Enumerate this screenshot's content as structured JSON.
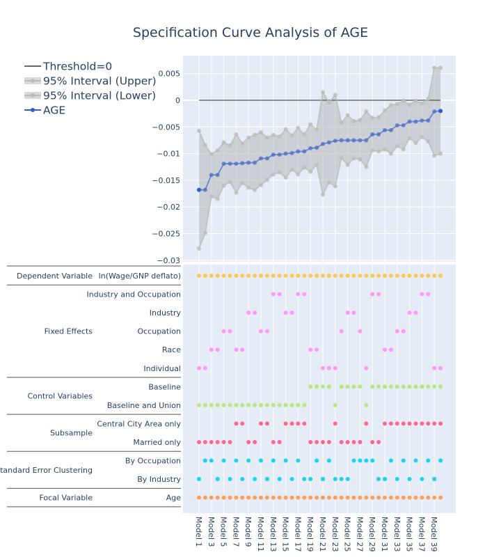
{
  "chart_data": {
    "type": "line",
    "title": "Specification Curve Analysis of AGE",
    "legend": {
      "placement": "top-left",
      "entries": [
        "Threshold=0",
        "95% Interval (Upper)",
        "95% Interval (Lower)",
        "AGE"
      ]
    },
    "grid": true,
    "colors": {
      "estimate": "#4a6fc9",
      "interval": "#bdbdbd",
      "threshold": "#666666",
      "plot_bg": "#e5ecf6"
    },
    "threshold": 0,
    "ylim": [
      -0.03,
      0.0075
    ],
    "yticks": [
      0.005,
      0,
      -0.005,
      -0.01,
      -0.015,
      -0.02,
      -0.025,
      -0.03
    ],
    "ytick_labels": [
      "0.005",
      "0",
      "−0.005",
      "−0.01",
      "−0.015",
      "−0.02",
      "−0.025",
      "−0.03"
    ],
    "models": [
      "Model 1",
      "Model 2",
      "Model 3",
      "Model 4",
      "Model 5",
      "Model 6",
      "Model 7",
      "Model 8",
      "Model 9",
      "Model 10",
      "Model 11",
      "Model 12",
      "Model 13",
      "Model 14",
      "Model 15",
      "Model 16",
      "Model 17",
      "Model 18",
      "Model 19",
      "Model 20",
      "Model 21",
      "Model 22",
      "Model 23",
      "Model 24",
      "Model 25",
      "Model 26",
      "Model 27",
      "Model 28",
      "Model 29",
      "Model 30",
      "Model 31",
      "Model 32",
      "Model 33",
      "Model 34",
      "Model 35",
      "Model 36",
      "Model 37",
      "Model 38",
      "Model 39",
      "Model 40"
    ],
    "xtick_labels": [
      "Model 1",
      "Model 3",
      "Model 5",
      "Model 7",
      "Model 9",
      "Model 11",
      "Model 13",
      "Model 15",
      "Model 17",
      "Model 19",
      "Model 21",
      "Model 23",
      "Model 25",
      "Model 27",
      "Model 29",
      "Model 31",
      "Model 33",
      "Model 35",
      "Model 37",
      "Model 39"
    ],
    "series": [
      {
        "name": "AGE",
        "values": [
          -0.0168,
          -0.0168,
          -0.014,
          -0.014,
          -0.0119,
          -0.0119,
          -0.0119,
          -0.0118,
          -0.0117,
          -0.0117,
          -0.0109,
          -0.0109,
          -0.0102,
          -0.0102,
          -0.01,
          -0.0099,
          -0.0096,
          -0.0096,
          -0.009,
          -0.0089,
          -0.0082,
          -0.0079,
          -0.0076,
          -0.0075,
          -0.0075,
          -0.0075,
          -0.0075,
          -0.0075,
          -0.0064,
          -0.0064,
          -0.0056,
          -0.0056,
          -0.0047,
          -0.0047,
          -0.004,
          -0.004,
          -0.0038,
          -0.0038,
          -0.0021,
          -0.002
        ]
      },
      {
        "name": "95% Interval (Upper)",
        "values": [
          -0.0057,
          -0.0084,
          -0.0101,
          -0.0094,
          -0.0079,
          -0.0085,
          -0.0064,
          -0.0081,
          -0.007,
          -0.0065,
          -0.006,
          -0.007,
          -0.0065,
          -0.0068,
          -0.0054,
          -0.0066,
          -0.0052,
          -0.0064,
          -0.0045,
          -0.0055,
          0.0015,
          -0.0004,
          0.001,
          -0.0042,
          -0.0028,
          -0.0039,
          -0.0037,
          -0.0021,
          -0.0033,
          -0.0032,
          -0.0019,
          -0.0009,
          -0.0007,
          -0.0001,
          -0.0008,
          -0.0001,
          -0.0006,
          0.0003,
          0.0061,
          0.0061
        ]
      },
      {
        "name": "95% Interval (Lower)",
        "values": [
          -0.0278,
          -0.0249,
          -0.018,
          -0.0185,
          -0.016,
          -0.0153,
          -0.0173,
          -0.0155,
          -0.0164,
          -0.0168,
          -0.0159,
          -0.0149,
          -0.0139,
          -0.0135,
          -0.0145,
          -0.013,
          -0.0139,
          -0.0126,
          -0.0134,
          -0.0121,
          -0.0177,
          -0.0154,
          -0.0161,
          -0.0108,
          -0.0121,
          -0.0109,
          -0.0111,
          -0.0125,
          -0.0094,
          -0.0096,
          -0.0092,
          -0.01,
          -0.0086,
          -0.0092,
          -0.0071,
          -0.008,
          -0.0069,
          -0.0077,
          -0.0104,
          -0.01
        ]
      }
    ],
    "specification_groups": [
      {
        "group": "Dependent Variable",
        "rows": [
          {
            "label": "ln(Wage/GNP deflato)",
            "color": "#FECB52",
            "models": [
              1,
              2,
              3,
              4,
              5,
              6,
              7,
              8,
              9,
              10,
              11,
              12,
              13,
              14,
              15,
              16,
              17,
              18,
              19,
              20,
              21,
              22,
              23,
              24,
              25,
              26,
              27,
              28,
              29,
              30,
              31,
              32,
              33,
              34,
              35,
              36,
              37,
              38,
              39,
              40
            ]
          }
        ]
      },
      {
        "group": "Fixed Effects",
        "rows": [
          {
            "label": "Industry and Occupation",
            "color": "#FF97FF",
            "models": [
              13,
              14,
              17,
              18,
              29,
              30,
              37,
              38
            ]
          },
          {
            "label": "Industry",
            "color": "#FF97FF",
            "models": [
              9,
              10,
              15,
              16,
              25,
              26,
              35,
              36
            ]
          },
          {
            "label": "Occupation",
            "color": "#FF97FF",
            "models": [
              5,
              6,
              11,
              12,
              24,
              27,
              33,
              34
            ]
          },
          {
            "label": "Race",
            "color": "#FF97FF",
            "models": [
              3,
              4,
              7,
              8,
              19,
              20,
              31,
              32
            ]
          },
          {
            "label": "Individual",
            "color": "#FF97FF",
            "models": [
              1,
              2,
              21,
              22,
              23,
              28,
              39,
              40
            ]
          }
        ]
      },
      {
        "group": "Control Variables",
        "rows": [
          {
            "label": "Baseline",
            "color": "#B6E880",
            "models": [
              19,
              20,
              21,
              22,
              24,
              25,
              26,
              27,
              29,
              30,
              31,
              32,
              33,
              34,
              35,
              36,
              37,
              38,
              39,
              40
            ]
          },
          {
            "label": "Baseline and Union",
            "color": "#B6E880",
            "models": [
              1,
              2,
              3,
              4,
              5,
              6,
              7,
              8,
              9,
              10,
              11,
              12,
              13,
              14,
              15,
              16,
              17,
              18,
              23,
              28
            ]
          }
        ]
      },
      {
        "group": "Subsample",
        "rows": [
          {
            "label": "Central City Area only",
            "color": "#FF6692",
            "models": [
              7,
              8,
              11,
              12,
              15,
              16,
              17,
              18,
              23,
              28,
              31,
              32,
              33,
              34,
              35,
              36,
              37,
              38,
              39,
              40
            ]
          },
          {
            "label": "Married only",
            "color": "#FF6692",
            "models": [
              1,
              2,
              3,
              4,
              5,
              6,
              9,
              10,
              13,
              14,
              19,
              20,
              21,
              22,
              24,
              25,
              26,
              27,
              29,
              30
            ]
          }
        ]
      },
      {
        "group": "Standard Error Clustering",
        "rows": [
          {
            "label": "By Occupation",
            "color": "#19D3F3",
            "models": [
              2,
              3,
              5,
              7,
              9,
              11,
              13,
              15,
              17,
              20,
              22,
              26,
              27,
              28,
              29,
              32,
              34,
              36,
              38,
              40
            ]
          },
          {
            "label": "By Industry",
            "color": "#19D3F3",
            "models": [
              1,
              4,
              6,
              8,
              10,
              12,
              14,
              16,
              18,
              19,
              21,
              23,
              24,
              25,
              30,
              31,
              33,
              35,
              37,
              39
            ]
          }
        ]
      },
      {
        "group": "Focal Variable",
        "rows": [
          {
            "label": "Age",
            "color": "#FFA15A",
            "models": [
              1,
              2,
              3,
              4,
              5,
              6,
              7,
              8,
              9,
              10,
              11,
              12,
              13,
              14,
              15,
              16,
              17,
              18,
              19,
              20,
              21,
              22,
              23,
              24,
              25,
              26,
              27,
              28,
              29,
              30,
              31,
              32,
              33,
              34,
              35,
              36,
              37,
              38,
              39,
              40
            ]
          }
        ]
      }
    ]
  }
}
